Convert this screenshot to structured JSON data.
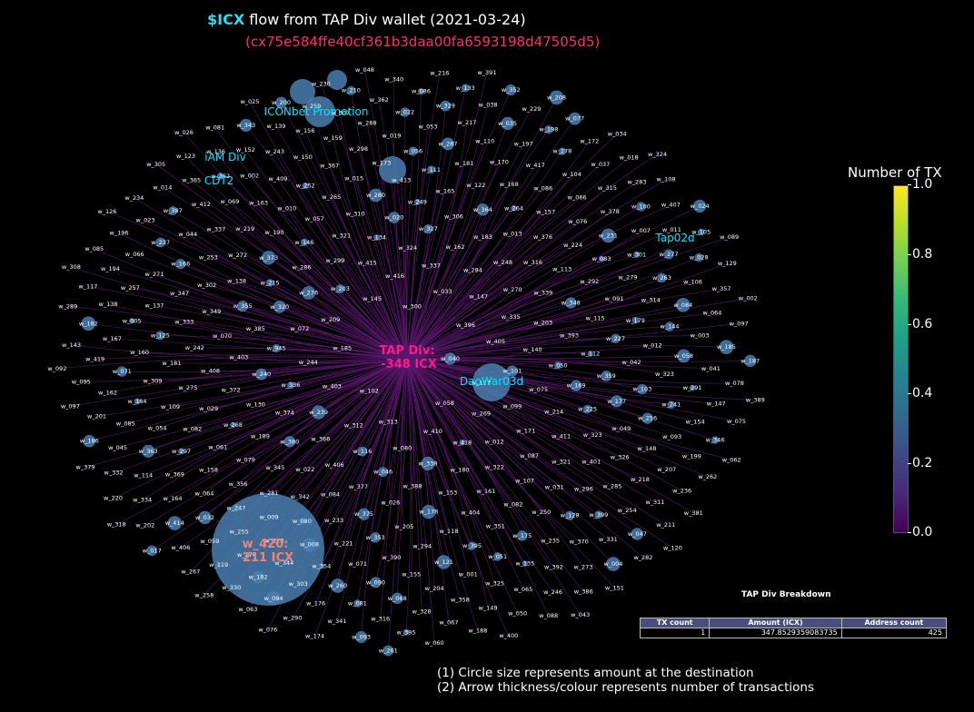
{
  "title": {
    "ticker": "$ICX",
    "text": "flow from TAP Div wallet (2021-03-24)"
  },
  "subtitle": "(cx75e584ffe40cf361b3daa00fa6593198d47505d5)",
  "colors": {
    "source_label": "#ff1a8c",
    "highlight_label": "#fa8072",
    "named_label": "#00e5ff",
    "node": "#4a7fb0",
    "edge": "#5a1a6e"
  },
  "colorbar": {
    "title": "Number of TX",
    "ticks": [
      "0.0",
      "0.2",
      "0.4",
      "0.6",
      "0.8",
      "1.0"
    ],
    "range": [
      0,
      1
    ],
    "colormap": "viridis"
  },
  "breakdown": {
    "title": "TAP Div Breakdown",
    "headers": [
      "TX count",
      "Amount (ICX)",
      "Address count"
    ],
    "row": [
      "1",
      "347.8529359083735",
      "425"
    ]
  },
  "notes": [
    "(1) Circle size represents amount at the destination",
    "(2) Arrow thickness/colour represents number of transactions"
  ],
  "chart_data": {
    "type": "network",
    "source": {
      "line1": "TAP Div:",
      "line2": "-348 ICX"
    },
    "highlight": {
      "line1": "w_420:",
      "line2": "211 ICX"
    },
    "named_nodes": [
      "ICONbet Promotion",
      "iAM Div",
      "CDT2",
      "DaoWar03d",
      "Tap02d"
    ],
    "node_labels": [
      "w_040",
      "w_102",
      "w_300",
      "w_058",
      "w_185",
      "w_396",
      "w_313",
      "w_145",
      "w_127",
      "w_403",
      "w_033",
      "w_410",
      "w_209",
      "w_405",
      "w_312",
      "w_416",
      "w_269",
      "w_244",
      "w_147",
      "w_080",
      "w_203",
      "w_101",
      "w_239",
      "w_337",
      "w_418",
      "w_072",
      "w_335",
      "w_116",
      "w_415",
      "w_099",
      "w_336",
      "w_284",
      "w_338",
      "w_276",
      "w_140",
      "w_366",
      "w_324",
      "w_012",
      "w_945",
      "w_270",
      "w_046",
      "w_299",
      "w_075",
      "w_374",
      "w_162",
      "w_180",
      "w_320",
      "w_203b",
      "w_406",
      "w_134",
      "w_171",
      "w_240",
      "w_248",
      "w_388",
      "w_286",
      "w_050",
      "w_380",
      "w_327",
      "w_322",
      "w_385",
      "w_339",
      "w_377",
      "w_321",
      "w_214",
      "w_130",
      "w_183",
      "w_153",
      "w_215",
      "w_393",
      "w_022",
      "w_020",
      "w_087",
      "w_403b",
      "w_316",
      "w_026",
      "w_146",
      "w_169",
      "w_189",
      "w_306",
      "w_161",
      "w_355",
      "w_348",
      "w_084",
      "w_310",
      "w_411",
      "w_372",
      "w_013",
      "w_178",
      "w_373",
      "w_112",
      "w_345",
      "w_249",
      "w_107",
      "w_070",
      "w_113",
      "w_375",
      "w_057",
      "w_225",
      "w_268",
      "w_364",
      "w_404",
      "w_138",
      "w_115",
      "w_342",
      "w_280",
      "w_321b",
      "w_408",
      "w_376",
      "w_205",
      "w_190",
      "w_359",
      "w_079",
      "w_165",
      "w_082",
      "w_349",
      "w_292",
      "w_233",
      "w_265",
      "w_323",
      "w_029",
      "w_264",
      "w_118",
      "w_272",
      "w_227",
      "w_281",
      "w_413",
      "w_031",
      "w_242",
      "w_224",
      "w_353",
      "w_010",
      "w_177",
      "w_061",
      "w_122",
      "w_351",
      "w_302",
      "w_091",
      "w_080b",
      "w_015",
      "w_401",
      "w_275",
      "w_157",
      "w_294",
      "w_219",
      "w_042",
      "w_356",
      "w_111",
      "w_250",
      "w_333",
      "w_083",
      "w_221",
      "w_252",
      "w_049",
      "w_082b",
      "w_168",
      "w_395",
      "w_253",
      "w_179",
      "w_009",
      "w_173",
      "w_296",
      "w_181",
      "w_076",
      "w_390",
      "w_163",
      "w_103",
      "w_158",
      "w_181b",
      "w_175",
      "w_347",
      "w_279",
      "w_008",
      "w_367",
      "w_326",
      "w_109",
      "w_086",
      "w_121",
      "w_337b",
      "w_012b",
      "w_247",
      "w_056",
      "w_128",
      "w_125",
      "w_231",
      "w_071",
      "w_409",
      "w_256",
      "w_297",
      "w_170",
      "w_051",
      "w_166",
      "w_314",
      "w_228",
      "w_298",
      "w_285",
      "w_309",
      "w_066",
      "w_155",
      "w_069",
      "w_323b",
      "w_064",
      "w_287",
      "w_235",
      "w_137",
      "w_301",
      "w_354",
      "w_150",
      "w_148",
      "w_054",
      "w_417",
      "w_001",
      "w_044",
      "w_144",
      "w_255",
      "w_019",
      "w_399",
      "w_160",
      "w_378",
      "w_090",
      "w_002",
      "w_241",
      "w_369",
      "w_110",
      "w_135",
      "w_271",
      "w_263",
      "w_344",
      "w_159",
      "w_218",
      "w_184",
      "w_104",
      "w_204",
      "w_412",
      "w_058b",
      "w_032",
      "w_053",
      "w_370",
      "w_005",
      "w_007",
      "w_260",
      "w_243",
      "w_093",
      "w_363",
      "w_197",
      "w_325",
      "w_237",
      "w_084b",
      "w_274",
      "w_288",
      "w_254",
      "w_071b",
      "w_315",
      "w_068",
      "w_362",
      "w_291",
      "w_164",
      "w_217",
      "w_392",
      "w_257",
      "w_277",
      "w_303",
      "w_156",
      "w_207",
      "w_085",
      "w_278",
      "w_358",
      "w_387",
      "w_003",
      "w_059",
      "w_022b",
      "w_331",
      "w_167",
      "w_100",
      "w_081",
      "w_152",
      "w_154",
      "w_114",
      "w_035",
      "w_065",
      "w_066b",
      "w_106",
      "w_182",
      "w_307",
      "w_311",
      "w_162b",
      "w_037",
      "w_328",
      "w_365",
      "w_041",
      "w_414",
      "w_329",
      "w_273",
      "w_138b",
      "w_011",
      "w_176",
      "w_139",
      "w_199",
      "w_045",
      "w_198",
      "w_149",
      "w_023",
      "w_064b",
      "w_119",
      "w_362b",
      "w_047",
      "w_419",
      "w_283",
      "w_316b",
      "w_136",
      "w_147b",
      "w_334",
      "w_038",
      "w_246",
      "w_194",
      "w_028",
      "w_094",
      "w_259",
      "w_236",
      "w_201",
      "w_172",
      "w_067",
      "w_014",
      "w_185b",
      "w_406b",
      "w_086b",
      "w_004",
      "w_182b",
      "w_407",
      "w_341",
      "w_343",
      "w_346",
      "w_332",
      "w_229",
      "w_050b",
      "w_196",
      "w_357",
      "w_330",
      "w_210",
      "w_211",
      "w_095",
      "w_018",
      "w_395b",
      "w_123",
      "w_078",
      "w_202",
      "w_133",
      "w_386",
      "w_117",
      "w_105",
      "w_290",
      "w_200",
      "w_262",
      "w_186",
      "w_077",
      "w_188",
      "w_234",
      "w_097",
      "w_267",
      "w_340",
      "w_282",
      "w_143",
      "w_108",
      "w_093b",
      "w_081b",
      "w_075b",
      "w_220",
      "w_352",
      "w_088",
      "w_085b",
      "w_129",
      "w_063",
      "w_230",
      "w_381",
      "w_097b",
      "w_034",
      "w_060",
      "w_305",
      "w_187",
      "w_017",
      "w_216",
      "w_151",
      "w_289",
      "w_024",
      "w_174",
      "w_025",
      "w_062",
      "w_379",
      "w_208",
      "w_400",
      "w_126",
      "w_002b",
      "w_258",
      "w_048",
      "w_120",
      "w_092",
      "w_324b",
      "w_261",
      "w_026b",
      "w_389",
      "w_318",
      "w_391",
      "w_043",
      "w_308",
      "w_089",
      "w_076b"
    ]
  }
}
